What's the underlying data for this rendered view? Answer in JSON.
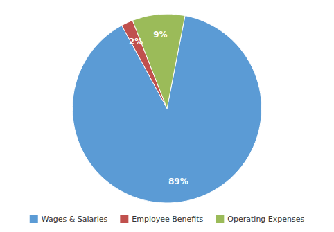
{
  "chart_data": {
    "type": "pie",
    "categories": [
      "Wages & Salaries",
      "Employee Benefits",
      "Operating Expenses"
    ],
    "values": [
      89,
      2,
      9
    ],
    "value_labels": [
      "89%",
      "2%",
      "9%"
    ],
    "colors": [
      "#5b9bd5",
      "#c0504d",
      "#9bbb59"
    ],
    "data_labels": true,
    "legend": "bottom"
  }
}
